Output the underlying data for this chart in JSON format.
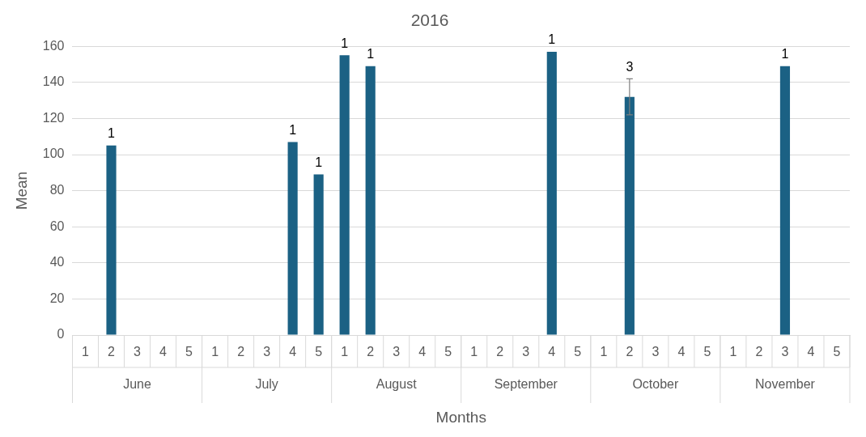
{
  "chart_data": {
    "type": "bar",
    "title": "2016",
    "xlabel": "Months",
    "ylabel": "Mean",
    "categories": [
      "1",
      "2",
      "3",
      "4",
      "5",
      "1",
      "2",
      "3",
      "4",
      "5",
      "1",
      "2",
      "3",
      "4",
      "5",
      "1",
      "2",
      "3",
      "4",
      "5",
      "1",
      "2",
      "3",
      "4",
      "5",
      "1",
      "2",
      "3",
      "4",
      "5"
    ],
    "annotations": [
      "June",
      "July",
      "August",
      "September",
      "October",
      "November",
      "1",
      "1",
      "1",
      "1",
      "1",
      "1",
      "3",
      "1"
    ],
    "values": [
      null,
      105,
      null,
      null,
      null,
      null,
      null,
      null,
      107,
      89,
      155,
      149,
      null,
      null,
      null,
      null,
      null,
      null,
      157,
      null,
      null,
      132,
      null,
      null,
      null,
      null,
      null,
      149,
      null,
      null
    ],
    "errors": [
      null,
      null,
      null,
      null,
      null,
      null,
      null,
      null,
      null,
      null,
      null,
      null,
      null,
      null,
      null,
      null,
      null,
      null,
      null,
      null,
      null,
      10,
      null,
      null,
      null,
      null,
      null,
      null,
      null,
      null
    ],
    "color": "#1b6184",
    "ylim": [
      0,
      160
    ],
    "yticks": [
      0,
      20,
      40,
      60,
      80,
      100,
      120,
      140,
      160
    ],
    "grid": "y",
    "legend": false
  }
}
